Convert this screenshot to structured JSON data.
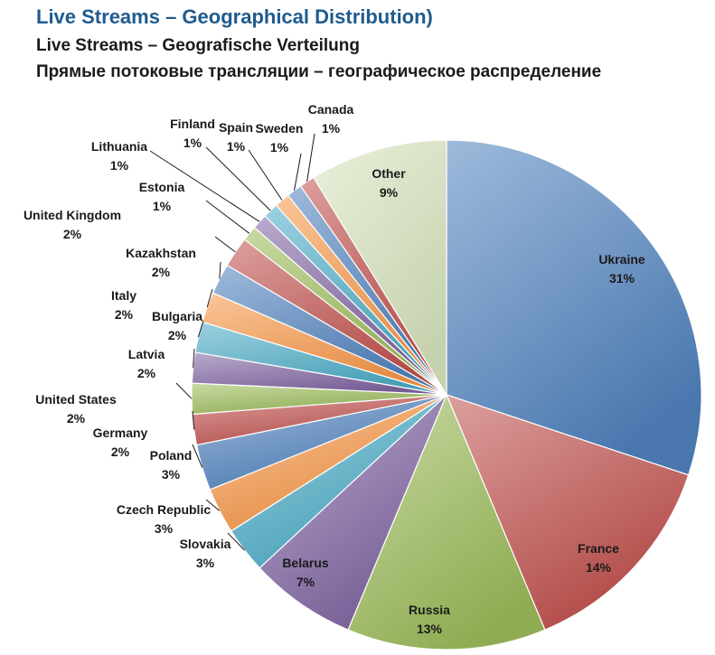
{
  "chart_data": {
    "type": "pie",
    "title": "Live Streams – Geographical Distribution)",
    "subtitle_de": "Live Streams – Geografische Verteilung",
    "subtitle_ru": "Прямые потоковые трансляции – географическое распределение",
    "start": "12 o'clock",
    "direction": "clockwise",
    "slices": [
      {
        "name": "Ukraine",
        "value": 31,
        "label": "31%",
        "color": "#4f81bd"
      },
      {
        "name": "France",
        "value": 14,
        "label": "14%",
        "color": "#c0504d"
      },
      {
        "name": "Russia",
        "value": 13,
        "label": "13%",
        "color": "#9bbb59"
      },
      {
        "name": "Belarus",
        "value": 7,
        "label": "7%",
        "color": "#8064a2"
      },
      {
        "name": "Slovakia",
        "value": 3,
        "label": "3%",
        "color": "#4bacc6"
      },
      {
        "name": "Czech Republic",
        "value": 3,
        "label": "3%",
        "color": "#f79646"
      },
      {
        "name": "Poland",
        "value": 3,
        "label": "3%",
        "color": "#4f81bd"
      },
      {
        "name": "Germany",
        "value": 2,
        "label": "2%",
        "color": "#c0504d"
      },
      {
        "name": "United States",
        "value": 2,
        "label": "2%",
        "color": "#9bbb59"
      },
      {
        "name": "Latvia",
        "value": 2,
        "label": "2%",
        "color": "#8064a2"
      },
      {
        "name": "Bulgaria",
        "value": 2,
        "label": "2%",
        "color": "#4bacc6"
      },
      {
        "name": "Italy",
        "value": 2,
        "label": "2%",
        "color": "#f79646"
      },
      {
        "name": "Kazakhstan",
        "value": 2,
        "label": "2%",
        "color": "#4f81bd"
      },
      {
        "name": "United Kingdom",
        "value": 2,
        "label": "2%",
        "color": "#c0504d"
      },
      {
        "name": "Estonia",
        "value": 1,
        "label": "1%",
        "color": "#9bbb59"
      },
      {
        "name": "Lithuania",
        "value": 1,
        "label": "1%",
        "color": "#8064a2"
      },
      {
        "name": "Finland",
        "value": 1,
        "label": "1%",
        "color": "#4bacc6"
      },
      {
        "name": "Spain",
        "value": 1,
        "label": "1%",
        "color": "#f79646"
      },
      {
        "name": "Sweden",
        "value": 1,
        "label": "1%",
        "color": "#4f81bd"
      },
      {
        "name": "Canada",
        "value": 1,
        "label": "1%",
        "color": "#c0504d"
      },
      {
        "name": "Other",
        "value": 9,
        "label": "9%",
        "color": "#d7e4bd"
      }
    ]
  }
}
